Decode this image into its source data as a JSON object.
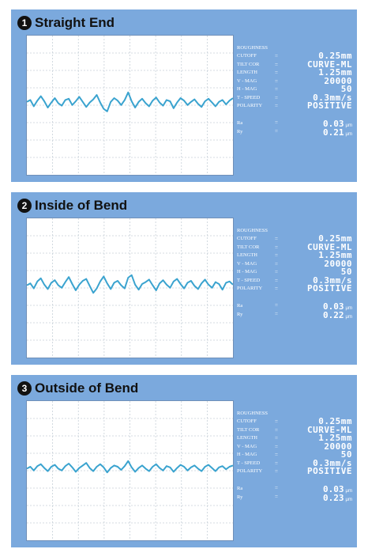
{
  "param_header": "ROUGHNESS",
  "param_labels": [
    "CUTOFF",
    "TILT COR",
    "LENGTH",
    "V - MAG",
    "H - MAG",
    "T - SPEED",
    "POLARITY"
  ],
  "result_labels": [
    "Ra",
    "Ry"
  ],
  "equals": "=",
  "result_unit": "μm",
  "colors": {
    "panel": "#7ba9dd",
    "trace": "#3aa3cf",
    "grid": "#c6cfd8"
  },
  "panels": [
    {
      "number": "1",
      "title": "Straight End",
      "params": [
        "0.25mm",
        "CURVE-ML",
        "1.25mm",
        "20000",
        "50",
        "0.3mm/s",
        "POSITIVE"
      ],
      "results": [
        "0.03",
        "0.21"
      ]
    },
    {
      "number": "2",
      "title": "Inside of Bend",
      "params": [
        "0.25mm",
        "CURVE-ML",
        "1.25mm",
        "20000",
        "50",
        "0.3mm/s",
        "POSITIVE"
      ],
      "results": [
        "0.03",
        "0.22"
      ]
    },
    {
      "number": "3",
      "title": "Outside of Bend",
      "params": [
        "0.25mm",
        "CURVE-ML",
        "1.25mm",
        "20000",
        "50",
        "0.3mm/s",
        "POSITIVE"
      ],
      "results": [
        "0.03",
        "0.23"
      ]
    }
  ],
  "chart_data": [
    {
      "type": "line",
      "series": [
        {
          "values": [
            0.3,
            0.6,
            -0.4,
            0.5,
            1.2,
            0.4,
            -0.6,
            0.2,
            0.9,
            0.1,
            -0.3,
            0.6,
            0.8,
            -0.2,
            0.4,
            1.1,
            0.3,
            -0.5,
            0.2,
            0.7,
            1.4,
            0.2,
            -0.8,
            -1.2,
            0.3,
            0.9,
            0.5,
            -0.2,
            0.6,
            1.8,
            0.4,
            -0.6,
            0.3,
            0.8,
            0.1,
            -0.4,
            0.5,
            1.0,
            0.2,
            -0.3,
            0.6,
            0.4,
            -0.7,
            0.2,
            0.9,
            0.5,
            -0.2,
            0.3,
            0.7,
            0.0,
            -0.5,
            0.4,
            0.8,
            0.2,
            -0.4,
            0.3,
            0.6,
            -0.1,
            0.5,
            0.9
          ]
        }
      ],
      "grid": true
    },
    {
      "type": "line",
      "series": [
        {
          "values": [
            0.2,
            0.5,
            -0.3,
            0.8,
            1.3,
            0.3,
            -0.4,
            0.6,
            1.0,
            0.2,
            -0.2,
            0.7,
            1.5,
            0.4,
            -0.6,
            0.3,
            0.9,
            1.2,
            0.1,
            -1.0,
            -0.3,
            0.8,
            1.6,
            0.5,
            -0.4,
            0.6,
            0.9,
            0.2,
            -0.3,
            1.4,
            1.8,
            0.3,
            -0.5,
            0.4,
            0.7,
            1.1,
            0.2,
            -0.6,
            0.5,
            1.0,
            0.3,
            -0.2,
            0.8,
            1.2,
            0.4,
            -0.3,
            0.6,
            0.9,
            0.1,
            -0.4,
            0.5,
            1.1,
            0.3,
            -0.2,
            0.7,
            0.4,
            -0.5,
            0.6,
            0.8,
            0.3
          ]
        }
      ],
      "grid": true
    },
    {
      "type": "line",
      "series": [
        {
          "values": [
            0.1,
            0.4,
            -0.2,
            0.5,
            0.8,
            0.2,
            -0.3,
            0.4,
            0.7,
            0.1,
            -0.2,
            0.5,
            0.9,
            0.3,
            -0.4,
            0.2,
            0.6,
            1.0,
            0.2,
            -0.3,
            0.4,
            0.8,
            0.3,
            -0.5,
            0.2,
            0.6,
            0.4,
            -0.1,
            0.5,
            1.3,
            0.3,
            -0.4,
            0.2,
            0.6,
            0.1,
            -0.3,
            0.4,
            0.8,
            0.2,
            -0.2,
            0.5,
            0.3,
            -0.4,
            0.2,
            0.7,
            0.4,
            -0.2,
            0.3,
            0.6,
            0.1,
            -0.3,
            0.4,
            0.7,
            0.2,
            -0.3,
            0.3,
            0.5,
            0.0,
            0.4,
            0.6
          ]
        }
      ],
      "grid": true
    }
  ]
}
